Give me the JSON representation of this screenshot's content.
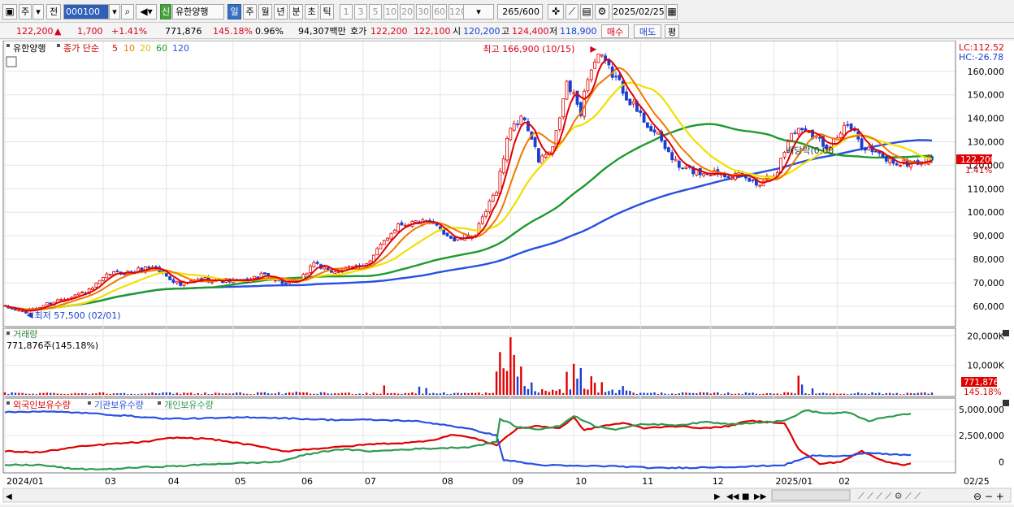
{
  "toolbar": {
    "market": "주",
    "scope": "전",
    "code": "000100",
    "stock_badge": "신",
    "stock_name": "유한양행",
    "period_tabs": [
      "일",
      "주",
      "월",
      "년",
      "분",
      "초",
      "틱"
    ],
    "active_period": "일",
    "intervals": [
      "1",
      "3",
      "5",
      "10",
      "20",
      "30",
      "60",
      "120"
    ],
    "range_count": "265",
    "range_max": "/600",
    "date": "2025/02/25"
  },
  "quote": {
    "price": "122,200",
    "change": "1,700",
    "rate": "+1.41%",
    "volume": "771,876",
    "volume_ratio": "145.18%",
    "turnover": "0.96%",
    "amount": "94,307백만",
    "ask_label": "호가",
    "ask": "122,200",
    "bid": "122,100",
    "open_label": "시",
    "open": "120,200",
    "high_label": "고",
    "high": "124,400",
    "low_label": "저",
    "low": "118,900",
    "buy_label": "매수",
    "sell_label": "매도",
    "flat_label": "평"
  },
  "legend": {
    "stock": "유한양행",
    "ma_title": "종가 단순",
    "ma_periods": [
      "5",
      "10",
      "20",
      "60",
      "120"
    ],
    "volume_title": "거래량",
    "volume_value": "771,876주(145.18%)",
    "holders": [
      "외국인보유수량",
      "기관보유수량",
      "개인보유수량"
    ],
    "lc": "LC:112.52",
    "hc": "HC:-26.78",
    "high_note": "최고 166,900 (10/15)",
    "low_note": "최저 57,500 (02/01)",
    "dividend_note": "배당락(0.00",
    "last_price_tag": "122,200",
    "last_rate_tag": "1.41%",
    "last_volume_tag": "771,876",
    "last_volume_rate_tag": "145.18%",
    "x_end_label": "02/25"
  },
  "colors": {
    "up": "#e00000",
    "down": "#1a3fd0",
    "ma5": "#e00000",
    "ma10": "#f07800",
    "ma20": "#f0e000",
    "ma60": "#1e9a2e",
    "ma120": "#2850e0",
    "foreign": "#e00000",
    "institution": "#2850e0",
    "individual": "#2e9a50"
  },
  "chart_data": [
    {
      "type": "candlestick",
      "title": "유한양행",
      "y_ticks": [
        160000,
        150000,
        140000,
        130000,
        120000,
        110000,
        100000,
        90000,
        80000,
        70000,
        60000
      ],
      "y_tick_labels": [
        "160,000",
        "150,000",
        "140,000",
        "130,000",
        "120,000",
        "110,000",
        "100,000",
        "90,000",
        "80,000",
        "70,000",
        "60,000"
      ],
      "ylim": [
        52000,
        171000
      ],
      "x_labels": [
        "2024/01",
        "03",
        "04",
        "05",
        "06",
        "07",
        "08",
        "09",
        "10",
        "11",
        "12",
        "2025/01",
        "02"
      ],
      "x_label_index": [
        0,
        28,
        46,
        65,
        84,
        102,
        124,
        144,
        162,
        181,
        201,
        219,
        237
      ],
      "count": 265,
      "anchors": [
        [
          0,
          59500
        ],
        [
          6,
          57500
        ],
        [
          12,
          61000
        ],
        [
          18,
          64000
        ],
        [
          24,
          66500
        ],
        [
          30,
          74000
        ],
        [
          36,
          74500
        ],
        [
          42,
          77000
        ],
        [
          46,
          73000
        ],
        [
          50,
          69000
        ],
        [
          56,
          71500
        ],
        [
          62,
          71000
        ],
        [
          68,
          70500
        ],
        [
          74,
          73500
        ],
        [
          80,
          69500
        ],
        [
          84,
          70500
        ],
        [
          88,
          79000
        ],
        [
          92,
          74500
        ],
        [
          98,
          76000
        ],
        [
          104,
          79000
        ],
        [
          108,
          88000
        ],
        [
          112,
          95000
        ],
        [
          118,
          96000
        ],
        [
          123,
          94000
        ],
        [
          128,
          88000
        ],
        [
          134,
          90500
        ],
        [
          140,
          110000
        ],
        [
          144,
          137000
        ],
        [
          148,
          140000
        ],
        [
          152,
          122000
        ],
        [
          156,
          126500
        ],
        [
          160,
          155000
        ],
        [
          164,
          143000
        ],
        [
          166,
          158000
        ],
        [
          169,
          166900
        ],
        [
          174,
          157000
        ],
        [
          180,
          143000
        ],
        [
          186,
          132000
        ],
        [
          192,
          119000
        ],
        [
          198,
          117000
        ],
        [
          204,
          117000
        ],
        [
          210,
          115000
        ],
        [
          214,
          112000
        ],
        [
          220,
          118000
        ],
        [
          224,
          134000
        ],
        [
          228,
          136000
        ],
        [
          234,
          128000
        ],
        [
          240,
          137000
        ],
        [
          244,
          129000
        ],
        [
          250,
          123000
        ],
        [
          255,
          120500
        ],
        [
          264,
          122200
        ]
      ],
      "moving_averages": {
        "5": {
          "color": "#e00000"
        },
        "10": {
          "color": "#f07800"
        },
        "20": {
          "color": "#f0e000"
        },
        "60": {
          "color": "#1e9a2e"
        },
        "120": {
          "color": "#2850e0"
        }
      },
      "annotations": [
        {
          "text": "최고 166,900 (10/15)",
          "x_index": 169,
          "y": 166900
        },
        {
          "text": "최저 57,500 (02/01)",
          "x_index": 8,
          "y": 57500
        },
        {
          "text": "배당락(0.00",
          "x_index": 227,
          "y": 123000
        }
      ]
    },
    {
      "type": "bar",
      "title": "거래량",
      "ylabel": "",
      "y_ticks": [
        20000000,
        10000000
      ],
      "y_tick_labels": [
        "20,000K",
        "10,000K"
      ],
      "ylim": [
        0,
        22000000
      ],
      "last_value": 771876,
      "spikes": [
        [
          83,
          1100000
        ],
        [
          108,
          3200000
        ],
        [
          118,
          2800000
        ],
        [
          120,
          2300000
        ],
        [
          140,
          7900000
        ],
        [
          141,
          14500000
        ],
        [
          142,
          9000000
        ],
        [
          143,
          8100000
        ],
        [
          144,
          19500000
        ],
        [
          145,
          13500000
        ],
        [
          146,
          6200000
        ],
        [
          147,
          9600000
        ],
        [
          148,
          3000000
        ],
        [
          150,
          4200000
        ],
        [
          160,
          7800000
        ],
        [
          162,
          10500000
        ],
        [
          163,
          5500000
        ],
        [
          164,
          9100000
        ],
        [
          167,
          6300000
        ],
        [
          168,
          4100000
        ],
        [
          170,
          4300000
        ],
        [
          176,
          3000000
        ],
        [
          226,
          6500000
        ],
        [
          227,
          3500000
        ],
        [
          230,
          2200000
        ]
      ]
    },
    {
      "type": "line",
      "title": "외국인보유수량 / 기관보유수량 / 개인보유수량",
      "series": [
        {
          "name": "외국인보유수량",
          "color": "#e00000",
          "anchors": [
            [
              0,
              1000000
            ],
            [
              10,
              900000
            ],
            [
              20,
              1400000
            ],
            [
              30,
              1700000
            ],
            [
              40,
              1900000
            ],
            [
              48,
              2300000
            ],
            [
              58,
              2200000
            ],
            [
              70,
              1600000
            ],
            [
              80,
              1000000
            ],
            [
              86,
              1200000
            ],
            [
              95,
              1400000
            ],
            [
              105,
              1700000
            ],
            [
              115,
              1800000
            ],
            [
              122,
              2100000
            ],
            [
              128,
              2600000
            ],
            [
              134,
              2200000
            ],
            [
              140,
              1600000
            ],
            [
              146,
              3200000
            ],
            [
              152,
              3400000
            ],
            [
              158,
              3200000
            ],
            [
              162,
              4200000
            ],
            [
              165,
              3000000
            ],
            [
              170,
              3400000
            ],
            [
              176,
              3700000
            ],
            [
              182,
              3200000
            ],
            [
              190,
              3400000
            ],
            [
              200,
              3200000
            ],
            [
              206,
              3400000
            ],
            [
              212,
              3900000
            ],
            [
              222,
              3700000
            ],
            [
              226,
              1200000
            ],
            [
              232,
              -200000
            ],
            [
              238,
              0
            ],
            [
              244,
              1000000
            ],
            [
              250,
              100000
            ],
            [
              256,
              -300000
            ],
            [
              258,
              -100000
            ]
          ]
        },
        {
          "name": "기관보유수량",
          "color": "#2850e0",
          "anchors": [
            [
              0,
              4700000
            ],
            [
              8,
              4800000
            ],
            [
              20,
              4700000
            ],
            [
              34,
              4400000
            ],
            [
              46,
              4100000
            ],
            [
              60,
              4150000
            ],
            [
              70,
              4250000
            ],
            [
              80,
              4150000
            ],
            [
              92,
              4000000
            ],
            [
              104,
              4000000
            ],
            [
              116,
              3900000
            ],
            [
              126,
              3500000
            ],
            [
              134,
              3000000
            ],
            [
              140,
              2500000
            ],
            [
              142,
              200000
            ],
            [
              146,
              0
            ],
            [
              152,
              -300000
            ],
            [
              162,
              -400000
            ],
            [
              172,
              -400000
            ],
            [
              186,
              -600000
            ],
            [
              196,
              -550000
            ],
            [
              204,
              -500000
            ],
            [
              212,
              -450000
            ],
            [
              222,
              -300000
            ],
            [
              230,
              600000
            ],
            [
              238,
              500000
            ],
            [
              246,
              900000
            ],
            [
              252,
              700000
            ],
            [
              258,
              600000
            ]
          ]
        },
        {
          "name": "개인보유수량",
          "color": "#2e9a50",
          "anchors": [
            [
              0,
              -300000
            ],
            [
              10,
              -300000
            ],
            [
              20,
              -700000
            ],
            [
              30,
              -700000
            ],
            [
              40,
              -500000
            ],
            [
              50,
              -400000
            ],
            [
              60,
              -200000
            ],
            [
              70,
              -100000
            ],
            [
              78,
              0
            ],
            [
              86,
              700000
            ],
            [
              95,
              1200000
            ],
            [
              105,
              1000000
            ],
            [
              115,
              1200000
            ],
            [
              124,
              1300000
            ],
            [
              132,
              1400000
            ],
            [
              140,
              1900000
            ],
            [
              141,
              4100000
            ],
            [
              146,
              3300000
            ],
            [
              152,
              3100000
            ],
            [
              158,
              3400000
            ],
            [
              162,
              4400000
            ],
            [
              168,
              3400000
            ],
            [
              174,
              3100000
            ],
            [
              182,
              3600000
            ],
            [
              192,
              3500000
            ],
            [
              200,
              3800000
            ],
            [
              206,
              3600000
            ],
            [
              212,
              3700000
            ],
            [
              222,
              3900000
            ],
            [
              228,
              4900000
            ],
            [
              234,
              4600000
            ],
            [
              240,
              4700000
            ],
            [
              246,
              3900000
            ],
            [
              252,
              4300000
            ],
            [
              258,
              4600000
            ]
          ]
        }
      ],
      "y_ticks": [
        5000000,
        2500000,
        0
      ],
      "y_tick_labels": [
        "5,000,000",
        "2,500,000",
        "0"
      ],
      "ylim": [
        -900000,
        5600000
      ]
    }
  ]
}
